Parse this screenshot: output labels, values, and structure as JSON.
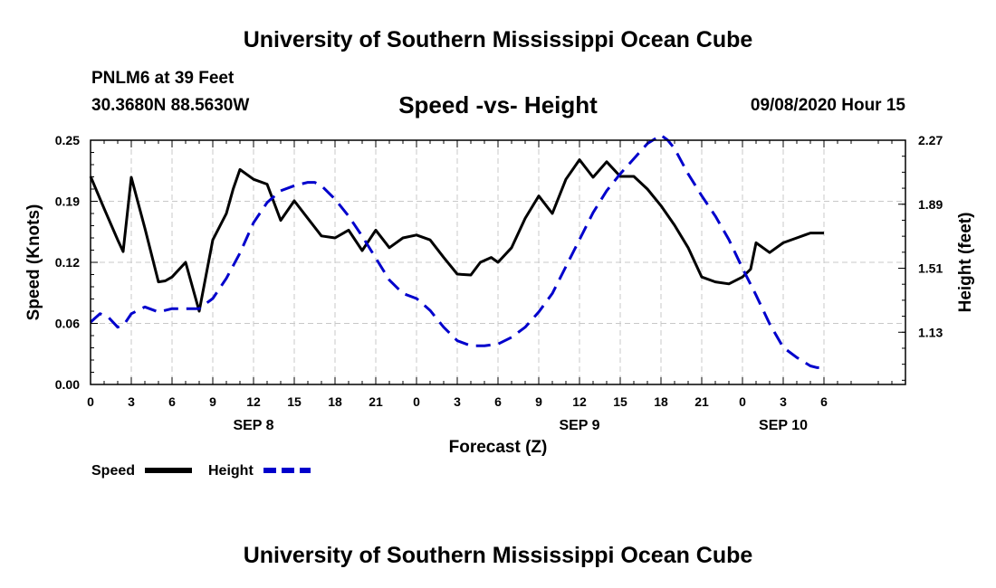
{
  "header": {
    "title": "University of Southern Mississippi Ocean Cube",
    "station": "PNLM6 at 39 Feet",
    "coords": "30.3680N 88.5630W",
    "subtitle": "Speed -vs- Height",
    "datetime": "09/08/2020 Hour 15"
  },
  "footer": {
    "title": "University of Southern Mississippi Ocean Cube"
  },
  "legend": [
    {
      "label": "Speed",
      "color": "#000000",
      "dash": false
    },
    {
      "label": "Height",
      "color": "#0000cc",
      "dash": true
    }
  ],
  "chart_data": {
    "type": "line",
    "title": "Speed -vs- Height",
    "xlabel": "Forecast (Z)",
    "ylabel": "Speed (Knots)",
    "y2label": "Height (feet)",
    "xlim": [
      0,
      60
    ],
    "ylim": [
      0,
      0.25
    ],
    "y2lim": [
      0.82,
      2.27
    ],
    "yticks": [
      "0.00",
      "0.06",
      "0.12",
      "0.19",
      "0.25"
    ],
    "y2ticks": [
      "1.13",
      "1.51",
      "1.89",
      "2.27"
    ],
    "xticks": [
      {
        "x": 0,
        "label": "0"
      },
      {
        "x": 3,
        "label": "3"
      },
      {
        "x": 6,
        "label": "6"
      },
      {
        "x": 9,
        "label": "9"
      },
      {
        "x": 12,
        "label": "12"
      },
      {
        "x": 15,
        "label": "15"
      },
      {
        "x": 18,
        "label": "18"
      },
      {
        "x": 21,
        "label": "21"
      },
      {
        "x": 24,
        "label": "0"
      },
      {
        "x": 27,
        "label": "3"
      },
      {
        "x": 30,
        "label": "6"
      },
      {
        "x": 33,
        "label": "9"
      },
      {
        "x": 36,
        "label": "12"
      },
      {
        "x": 39,
        "label": "15"
      },
      {
        "x": 42,
        "label": "18"
      },
      {
        "x": 45,
        "label": "21"
      },
      {
        "x": 48,
        "label": "0"
      },
      {
        "x": 51,
        "label": "3"
      },
      {
        "x": 54,
        "label": "6"
      }
    ],
    "date_labels": [
      {
        "x": 12,
        "label": "SEP 8"
      },
      {
        "x": 36,
        "label": "SEP 9"
      },
      {
        "x": 51,
        "label": "SEP 10"
      }
    ],
    "series": [
      {
        "name": "Speed",
        "axis": "left",
        "color": "#000000",
        "x": [
          0,
          1,
          2,
          2.4,
          3,
          4,
          5,
          5.5,
          6,
          7,
          8,
          9,
          10,
          10.5,
          11,
          12,
          13,
          14,
          15,
          16,
          17,
          18,
          19,
          20,
          21,
          22,
          23,
          24,
          25,
          26,
          27,
          28,
          28.7,
          29.5,
          30,
          31,
          32,
          33,
          34,
          35,
          36,
          37,
          38,
          39,
          40,
          41,
          42,
          43,
          44,
          45,
          46,
          47,
          48,
          48.6,
          49,
          50,
          51,
          52,
          53,
          54
        ],
        "values": [
          0.213,
          0.18,
          0.148,
          0.136,
          0.212,
          0.16,
          0.105,
          0.106,
          0.11,
          0.125,
          0.075,
          0.148,
          0.175,
          0.2,
          0.22,
          0.21,
          0.205,
          0.168,
          0.188,
          0.17,
          0.152,
          0.15,
          0.158,
          0.137,
          0.158,
          0.14,
          0.15,
          0.153,
          0.148,
          0.13,
          0.113,
          0.112,
          0.125,
          0.13,
          0.125,
          0.14,
          0.17,
          0.193,
          0.175,
          0.21,
          0.23,
          0.212,
          0.228,
          0.213,
          0.213,
          0.2,
          0.183,
          0.163,
          0.14,
          0.11,
          0.105,
          0.103,
          0.11,
          0.118,
          0.145,
          0.135,
          0.145,
          0.15,
          0.155,
          0.155
        ]
      },
      {
        "name": "Height",
        "axis": "right",
        "color": "#0000cc",
        "x": [
          0,
          0.7,
          1.3,
          2,
          2.5,
          3,
          4,
          5,
          6,
          7,
          8,
          9,
          10,
          11,
          12,
          13,
          14,
          15,
          16,
          16.5,
          17,
          18,
          19,
          20,
          21,
          22,
          23,
          24,
          25,
          26,
          27,
          28,
          29,
          30,
          31,
          32,
          33,
          34,
          35,
          36,
          37,
          38,
          39,
          40,
          41,
          42,
          42.5,
          43,
          44,
          45,
          46,
          47,
          48,
          49,
          50,
          51,
          52,
          53,
          53.5,
          54
        ],
        "values": [
          1.19,
          1.24,
          1.22,
          1.16,
          1.18,
          1.24,
          1.28,
          1.25,
          1.27,
          1.27,
          1.27,
          1.33,
          1.45,
          1.6,
          1.78,
          1.9,
          1.97,
          2.0,
          2.02,
          2.02,
          2.0,
          1.92,
          1.82,
          1.7,
          1.57,
          1.44,
          1.36,
          1.33,
          1.26,
          1.16,
          1.08,
          1.05,
          1.05,
          1.06,
          1.1,
          1.16,
          1.25,
          1.36,
          1.52,
          1.68,
          1.84,
          1.97,
          2.07,
          2.16,
          2.25,
          2.3,
          2.27,
          2.22,
          2.07,
          1.94,
          1.82,
          1.68,
          1.51,
          1.35,
          1.18,
          1.04,
          0.98,
          0.93,
          0.92,
          0.92
        ]
      }
    ]
  }
}
